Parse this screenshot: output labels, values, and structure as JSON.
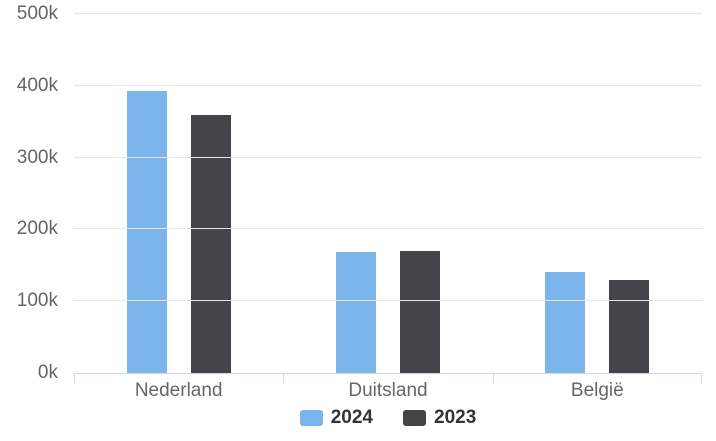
{
  "chart_data": {
    "type": "bar",
    "title": "",
    "xlabel": "",
    "ylabel": "",
    "categories": [
      "Nederland",
      "Duitsland",
      "België"
    ],
    "series": [
      {
        "name": "2024",
        "color": "#7cb5ec",
        "values": [
          393000,
          169000,
          141000
        ]
      },
      {
        "name": "2023",
        "color": "#434348",
        "values": [
          359000,
          170000,
          130000
        ]
      }
    ],
    "ylim": [
      0,
      500000
    ],
    "y_tick_step": 100000,
    "y_tick_labels": [
      "0k",
      "100k",
      "200k",
      "300k",
      "400k",
      "500k"
    ],
    "grid": true,
    "legend_position": "bottom"
  },
  "colors": {
    "background": "#ffffff",
    "gridline": "#e6e6e6",
    "axis_line": "#ccd6eb",
    "axis_label_text": "#666666",
    "legend_text": "#333333",
    "series_2024": "#7cb5ec",
    "series_2023": "#434348"
  }
}
